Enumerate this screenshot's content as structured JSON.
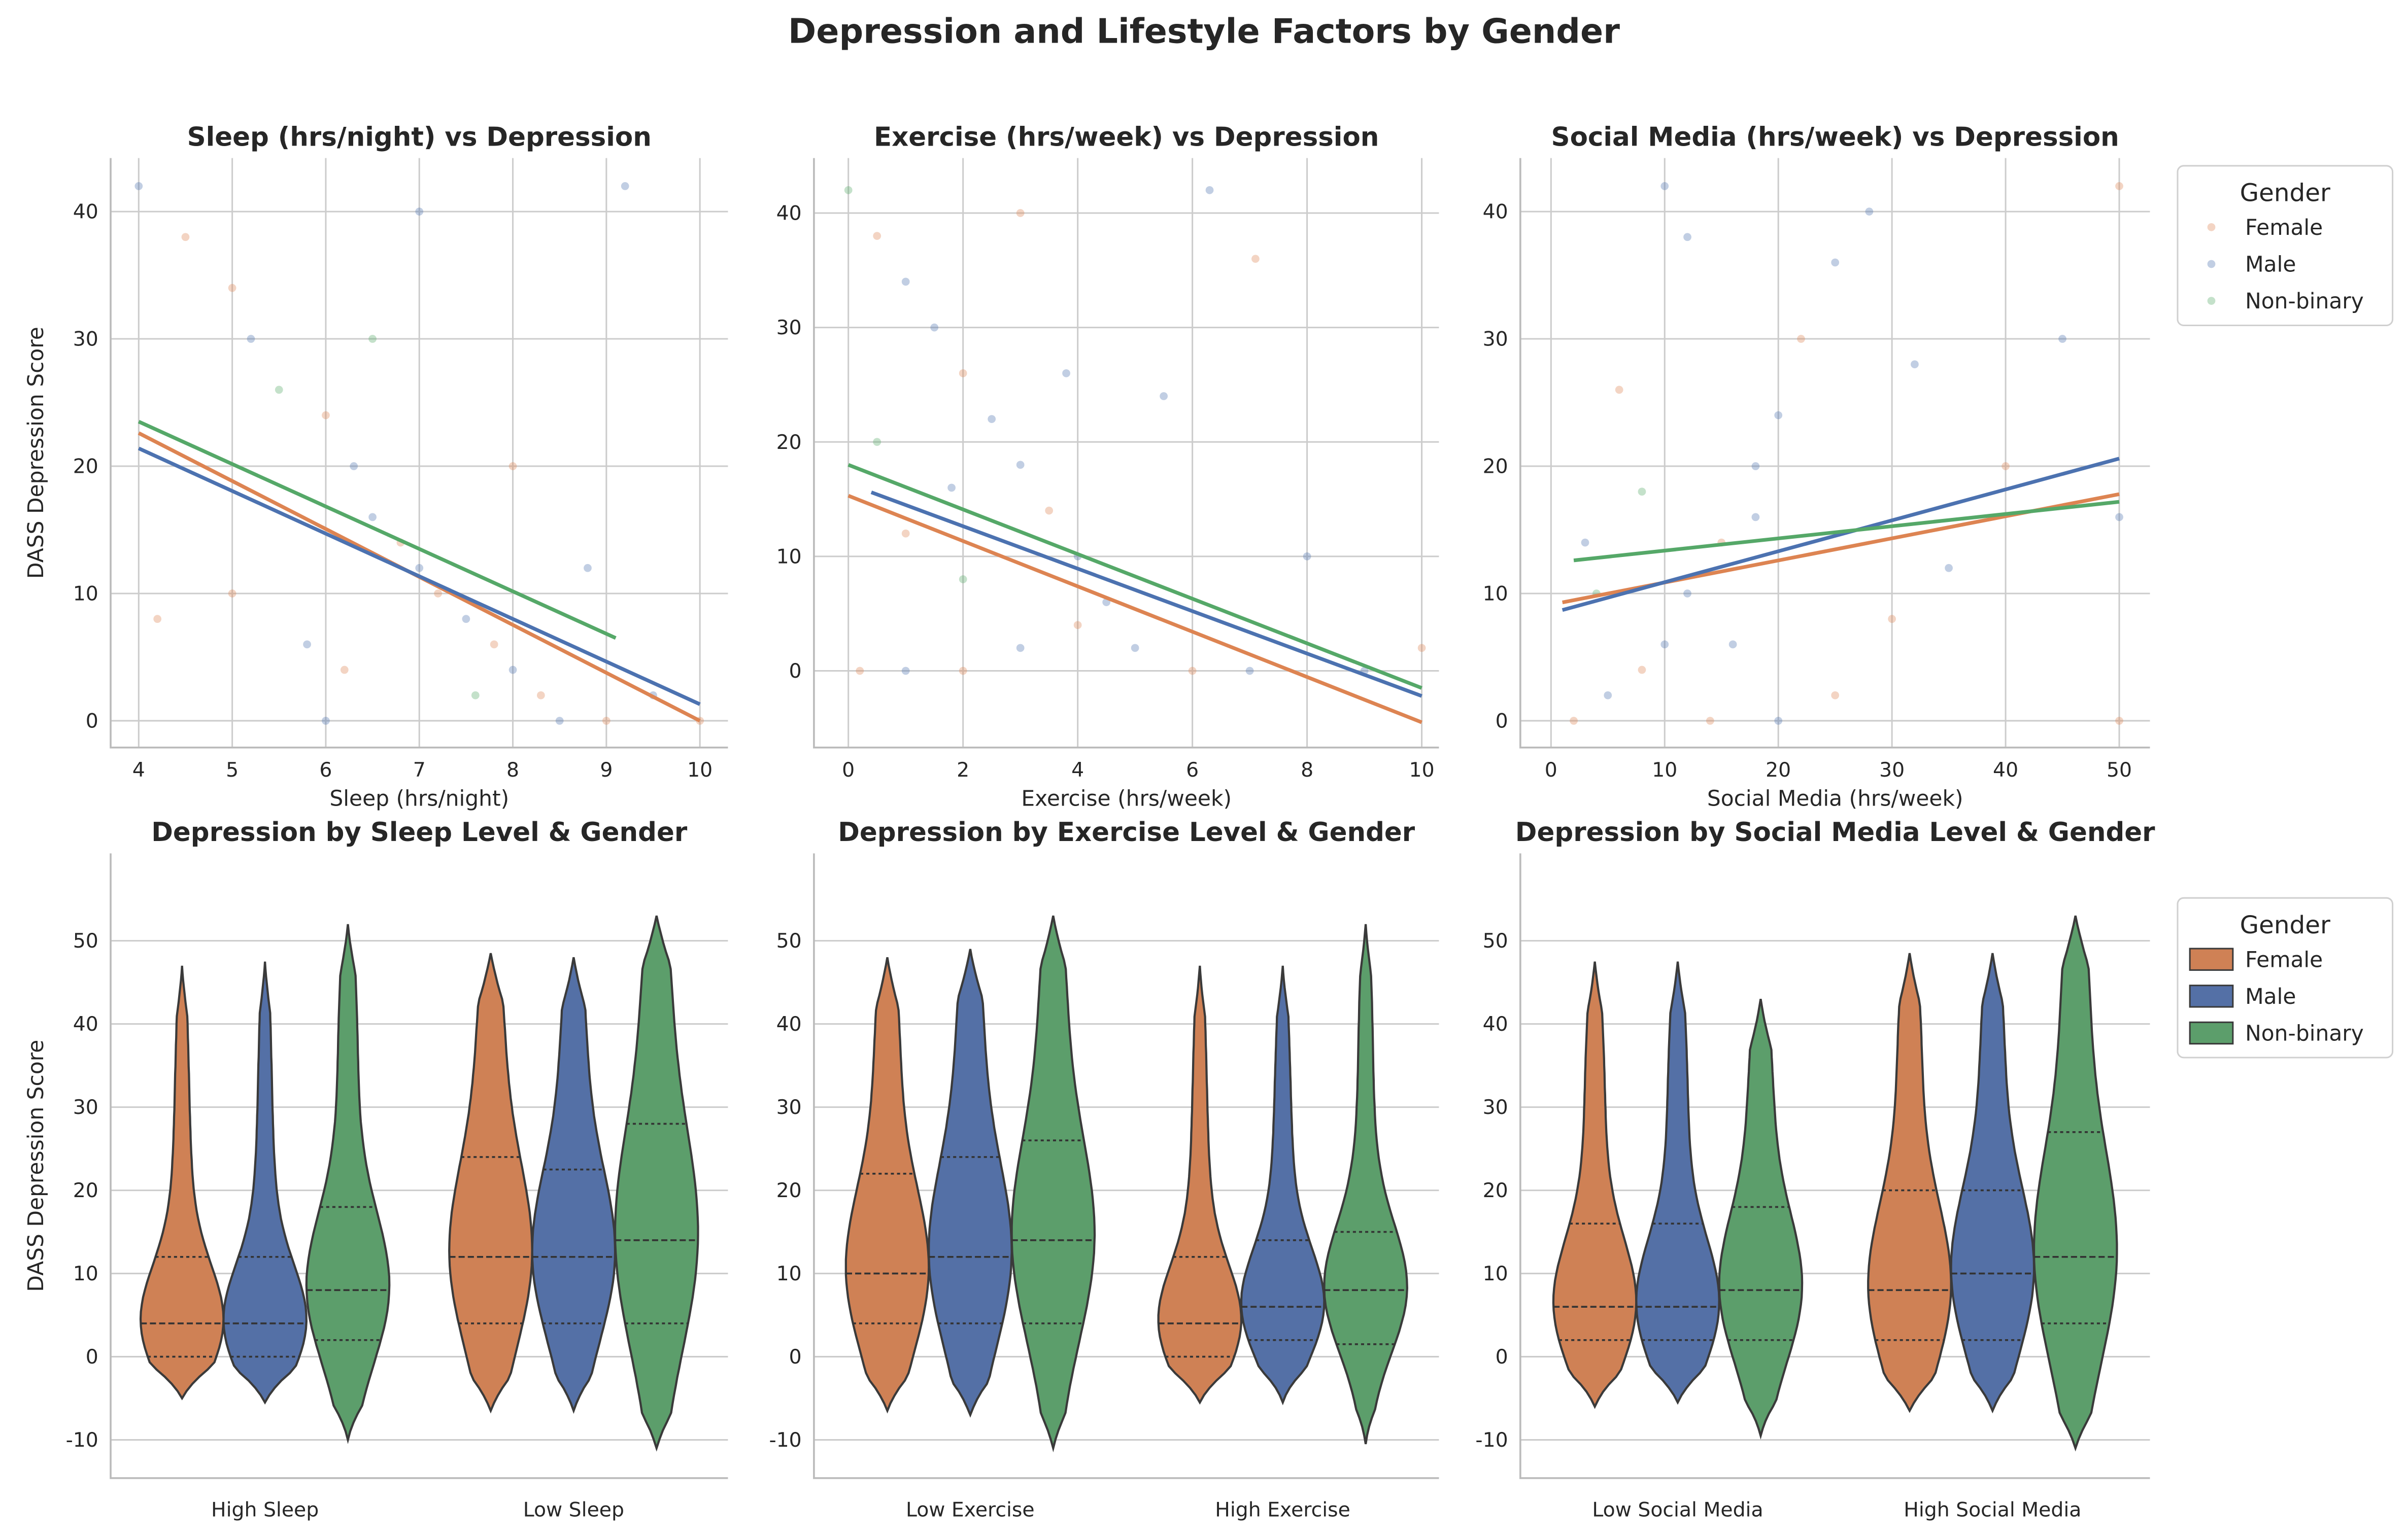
{
  "title": "Depression and Lifestyle Factors by Gender",
  "colors": {
    "Female": "#dd8452",
    "Male": "#4c72b0",
    "Non-binary": "#55a868",
    "vFemale": "#cf8155",
    "vMale": "#5470a6",
    "vNon-binary": "#5c9e6b"
  },
  "legend": {
    "title": "Gender",
    "entries": [
      "Female",
      "Male",
      "Non-binary"
    ]
  },
  "chart_data": [
    {
      "type": "scatter",
      "title": "Sleep (hrs/night) vs Depression",
      "xlabel": "Sleep (hrs/night)",
      "ylabel": "DASS Depression Score",
      "xlim": [
        3.7,
        10.3
      ],
      "ylim": [
        -2.1,
        44.2
      ],
      "xticks": [
        4,
        5,
        6,
        7,
        8,
        9,
        10
      ],
      "yticks": [
        0,
        10,
        20,
        30,
        40
      ],
      "grid": true,
      "regression": [
        {
          "name": "Female",
          "x": [
            4,
            10
          ],
          "y": [
            22.6,
            0
          ]
        },
        {
          "name": "Male",
          "x": [
            4,
            10
          ],
          "y": [
            21.4,
            1.3
          ]
        },
        {
          "name": "Non-binary",
          "x": [
            4,
            9.1
          ],
          "y": [
            23.5,
            6.5
          ]
        }
      ],
      "points": [
        [
          4,
          42,
          1
        ],
        [
          4.5,
          38,
          0
        ],
        [
          5,
          34,
          0
        ],
        [
          5.2,
          30,
          1
        ],
        [
          5.5,
          26,
          2
        ],
        [
          6,
          24,
          0
        ],
        [
          6.3,
          20,
          1
        ],
        [
          6.5,
          16,
          1
        ],
        [
          6.8,
          14,
          0
        ],
        [
          7,
          12,
          1
        ],
        [
          7.2,
          10,
          0
        ],
        [
          7.5,
          8,
          1
        ],
        [
          7.8,
          6,
          0
        ],
        [
          8,
          4,
          1
        ],
        [
          8.3,
          2,
          0
        ],
        [
          8.5,
          0,
          1
        ],
        [
          9,
          0,
          0
        ],
        [
          9.5,
          2,
          1
        ],
        [
          10,
          0,
          0
        ],
        [
          6,
          0,
          1
        ],
        [
          5,
          10,
          0
        ],
        [
          6.5,
          30,
          2
        ],
        [
          7,
          40,
          1
        ],
        [
          8,
          20,
          0
        ],
        [
          4.2,
          8,
          0
        ],
        [
          9.2,
          42,
          1
        ],
        [
          5.8,
          6,
          1
        ],
        [
          7.6,
          2,
          2
        ],
        [
          6.2,
          4,
          0
        ],
        [
          8.8,
          12,
          1
        ]
      ]
    },
    {
      "type": "scatter",
      "title": "Exercise (hrs/week) vs Depression",
      "xlabel": "Exercise (hrs/week)",
      "ylabel": "",
      "xlim": [
        -0.6,
        10.3
      ],
      "ylim": [
        -6.7,
        44.8
      ],
      "xticks": [
        0,
        2,
        4,
        6,
        8,
        10
      ],
      "yticks": [
        0,
        10,
        20,
        30,
        40
      ],
      "grid": true,
      "regression": [
        {
          "name": "Female",
          "x": [
            0,
            10
          ],
          "y": [
            15.3,
            -4.5
          ]
        },
        {
          "name": "Male",
          "x": [
            0.4,
            10
          ],
          "y": [
            15.6,
            -2.2
          ]
        },
        {
          "name": "Non-binary",
          "x": [
            0,
            10
          ],
          "y": [
            18,
            -1.5
          ]
        }
      ],
      "points": [
        [
          0,
          42,
          2
        ],
        [
          0.5,
          38,
          0
        ],
        [
          1,
          34,
          1
        ],
        [
          1.5,
          30,
          1
        ],
        [
          2,
          26,
          0
        ],
        [
          2.5,
          22,
          1
        ],
        [
          3,
          18,
          1
        ],
        [
          3.5,
          14,
          0
        ],
        [
          4,
          10,
          1
        ],
        [
          0.2,
          0,
          0
        ],
        [
          1,
          0,
          1
        ],
        [
          2,
          0,
          0
        ],
        [
          3,
          2,
          1
        ],
        [
          4,
          4,
          0
        ],
        [
          5,
          2,
          1
        ],
        [
          6,
          0,
          0
        ],
        [
          7,
          0,
          1
        ],
        [
          8,
          10,
          1
        ],
        [
          10,
          2,
          0
        ],
        [
          6.3,
          42,
          1
        ],
        [
          5.5,
          24,
          1
        ],
        [
          3,
          40,
          0
        ],
        [
          2,
          8,
          2
        ],
        [
          1,
          12,
          0
        ],
        [
          4.5,
          6,
          1
        ],
        [
          0.5,
          20,
          2
        ],
        [
          7.1,
          36,
          0
        ],
        [
          9,
          0,
          1
        ],
        [
          3.8,
          26,
          1
        ],
        [
          1.8,
          16,
          1
        ]
      ]
    },
    {
      "type": "scatter",
      "title": "Social Media (hrs/week) vs Depression",
      "xlabel": "Social Media (hrs/week)",
      "ylabel": "",
      "xlim": [
        -2.7,
        52.7
      ],
      "ylim": [
        -2.1,
        44.2
      ],
      "xticks": [
        0,
        10,
        20,
        30,
        40,
        50
      ],
      "yticks": [
        0,
        10,
        20,
        30,
        40
      ],
      "grid": true,
      "regression": [
        {
          "name": "Female",
          "x": [
            1,
            50
          ],
          "y": [
            9.3,
            17.8
          ]
        },
        {
          "name": "Male",
          "x": [
            1,
            50
          ],
          "y": [
            8.7,
            20.6
          ]
        },
        {
          "name": "Non-binary",
          "x": [
            2,
            50
          ],
          "y": [
            12.6,
            17.2
          ]
        }
      ],
      "points": [
        [
          2,
          0,
          0
        ],
        [
          5,
          2,
          1
        ],
        [
          8,
          4,
          0
        ],
        [
          10,
          6,
          1
        ],
        [
          12,
          10,
          1
        ],
        [
          15,
          14,
          0
        ],
        [
          18,
          20,
          1
        ],
        [
          20,
          24,
          1
        ],
        [
          22,
          30,
          0
        ],
        [
          25,
          36,
          1
        ],
        [
          28,
          40,
          1
        ],
        [
          3,
          14,
          1
        ],
        [
          6,
          26,
          0
        ],
        [
          10,
          42,
          1
        ],
        [
          14,
          0,
          0
        ],
        [
          20,
          0,
          1
        ],
        [
          30,
          8,
          0
        ],
        [
          35,
          12,
          1
        ],
        [
          40,
          20,
          0
        ],
        [
          45,
          30,
          1
        ],
        [
          50,
          42,
          0
        ],
        [
          50,
          16,
          1
        ],
        [
          50,
          0,
          0
        ],
        [
          8,
          18,
          2
        ],
        [
          12,
          38,
          1
        ],
        [
          16,
          6,
          1
        ],
        [
          25,
          2,
          0
        ],
        [
          32,
          28,
          1
        ],
        [
          4,
          10,
          2
        ],
        [
          18,
          16,
          1
        ]
      ]
    },
    {
      "type": "violin",
      "title": "Depression by Sleep Level & Gender",
      "xlabel": "",
      "ylabel": "DASS Depression Score",
      "ylim": [
        -14.6,
        60.5
      ],
      "yticks": [
        -10,
        0,
        10,
        20,
        30,
        40,
        50
      ],
      "categories": [
        "High Sleep",
        "Low Sleep"
      ],
      "groups": [
        [
          {
            "g": "Female",
            "min": -5,
            "max": 47,
            "q1": 0,
            "median": 4,
            "q3": 12
          },
          {
            "g": "Male",
            "min": -5.5,
            "max": 47.5,
            "q1": 0,
            "median": 4,
            "q3": 12
          },
          {
            "g": "Non-binary",
            "min": -10,
            "max": 52,
            "q1": 2,
            "median": 8,
            "q3": 18
          }
        ],
        [
          {
            "g": "Female",
            "min": -6.5,
            "max": 48.5,
            "q1": 4,
            "median": 12,
            "q3": 24
          },
          {
            "g": "Male",
            "min": -6.5,
            "max": 48,
            "q1": 4,
            "median": 12,
            "q3": 22.5
          },
          {
            "g": "Non-binary",
            "min": -11,
            "max": 53,
            "q1": 4,
            "median": 14,
            "q3": 28
          }
        ]
      ]
    },
    {
      "type": "violin",
      "title": "Depression by Exercise Level & Gender",
      "xlabel": "",
      "ylabel": "",
      "ylim": [
        -14.6,
        60.5
      ],
      "yticks": [
        -10,
        0,
        10,
        20,
        30,
        40,
        50
      ],
      "categories": [
        "Low Exercise",
        "High Exercise"
      ],
      "groups": [
        [
          {
            "g": "Female",
            "min": -6.5,
            "max": 48,
            "q1": 4,
            "median": 10,
            "q3": 22
          },
          {
            "g": "Male",
            "min": -7,
            "max": 49,
            "q1": 4,
            "median": 12,
            "q3": 24
          },
          {
            "g": "Non-binary",
            "min": -11,
            "max": 53,
            "q1": 4,
            "median": 14,
            "q3": 26
          }
        ],
        [
          {
            "g": "Female",
            "min": -5.5,
            "max": 47,
            "q1": 0,
            "median": 4,
            "q3": 12
          },
          {
            "g": "Male",
            "min": -5.5,
            "max": 47,
            "q1": 2,
            "median": 6,
            "q3": 14
          },
          {
            "g": "Non-binary",
            "min": -10.5,
            "max": 52,
            "q1": 1.5,
            "median": 8,
            "q3": 15
          }
        ]
      ]
    },
    {
      "type": "violin",
      "title": "Depression by Social Media Level & Gender",
      "xlabel": "",
      "ylabel": "",
      "ylim": [
        -14.6,
        60.5
      ],
      "yticks": [
        -10,
        0,
        10,
        20,
        30,
        40,
        50
      ],
      "categories": [
        "Low Social Media",
        "High Social Media"
      ],
      "groups": [
        [
          {
            "g": "Female",
            "min": -6,
            "max": 47.5,
            "q1": 2,
            "median": 6,
            "q3": 16
          },
          {
            "g": "Male",
            "min": -5.5,
            "max": 47.5,
            "q1": 2,
            "median": 6,
            "q3": 16
          },
          {
            "g": "Non-binary",
            "min": -9.5,
            "max": 43,
            "q1": 2,
            "median": 8,
            "q3": 18
          }
        ],
        [
          {
            "g": "Female",
            "min": -6.5,
            "max": 48.5,
            "q1": 2,
            "median": 8,
            "q3": 20
          },
          {
            "g": "Male",
            "min": -6.5,
            "max": 48.5,
            "q1": 2,
            "median": 10,
            "q3": 20
          },
          {
            "g": "Non-binary",
            "min": -11,
            "max": 53,
            "q1": 4,
            "median": 12,
            "q3": 27
          }
        ]
      ]
    }
  ]
}
